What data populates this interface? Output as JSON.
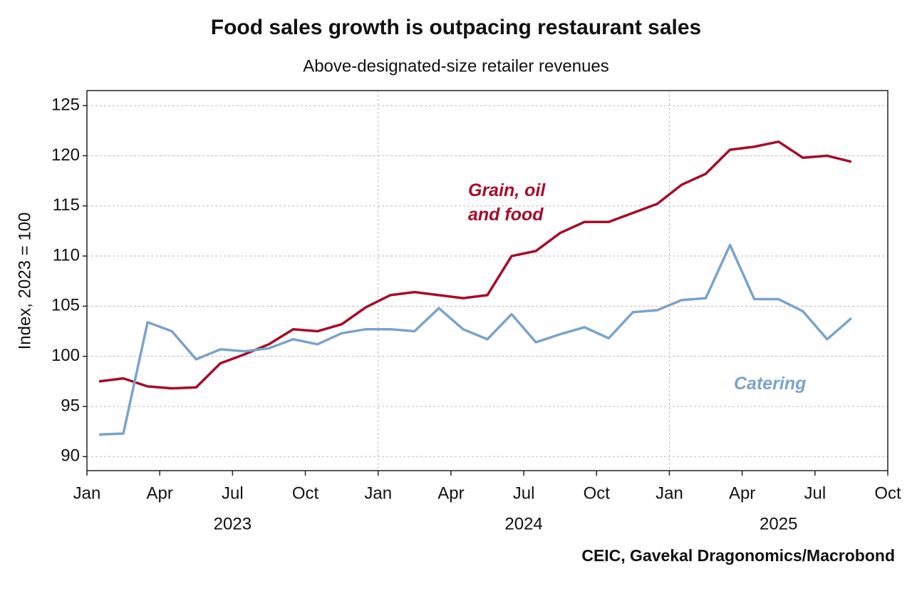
{
  "chart_data": {
    "type": "line",
    "title": "Food sales growth is outpacing restaurant sales",
    "subtitle": "Above-designated-size retailer revenues",
    "y_label": "Index, 2023 = 100",
    "source": "CEIC, Gavekal Dragonomics/Macrobond",
    "x": [
      "2023-01",
      "2023-02",
      "2023-03",
      "2023-04",
      "2023-05",
      "2023-06",
      "2023-07",
      "2023-08",
      "2023-09",
      "2023-10",
      "2023-11",
      "2023-12",
      "2024-01",
      "2024-02",
      "2024-03",
      "2024-04",
      "2024-05",
      "2024-06",
      "2024-07",
      "2024-08",
      "2024-09",
      "2024-10",
      "2024-11",
      "2024-12",
      "2025-01",
      "2025-02",
      "2025-03",
      "2025-04",
      "2025-05",
      "2025-06",
      "2025-07",
      "2025-08"
    ],
    "series": [
      {
        "name": "Grain, oil and food",
        "color": "#a50d2a",
        "values": [
          97.5,
          97.8,
          97.0,
          96.8,
          96.9,
          99.3,
          100.2,
          101.2,
          102.7,
          102.5,
          103.2,
          104.9,
          106.1,
          106.4,
          106.1,
          105.8,
          106.1,
          110.0,
          110.5,
          112.3,
          113.4,
          113.4,
          114.3,
          115.2,
          117.1,
          118.2,
          120.6,
          120.9,
          121.4,
          119.8,
          120.0,
          119.4
        ]
      },
      {
        "name": "Catering",
        "color": "#7aa3cc",
        "values": [
          92.2,
          92.3,
          103.4,
          102.5,
          99.7,
          100.7,
          100.5,
          100.8,
          101.7,
          101.2,
          102.3,
          102.7,
          102.7,
          102.5,
          104.8,
          102.7,
          101.7,
          104.2,
          101.4,
          102.2,
          102.9,
          101.8,
          104.4,
          104.6,
          105.6,
          105.8,
          111.1,
          105.7,
          105.7,
          104.5,
          101.7,
          103.8
        ]
      }
    ],
    "xlim": [
      "2023-01",
      "2025-10"
    ],
    "xticks": [
      {
        "value": "2023-01",
        "label": "Jan"
      },
      {
        "value": "2023-04",
        "label": "Apr"
      },
      {
        "value": "2023-07",
        "label": "Jul"
      },
      {
        "value": "2023-10",
        "label": "Oct"
      },
      {
        "value": "2024-01",
        "label": "Jan"
      },
      {
        "value": "2024-04",
        "label": "Apr"
      },
      {
        "value": "2024-07",
        "label": "Jul"
      },
      {
        "value": "2024-10",
        "label": "Oct"
      },
      {
        "value": "2025-01",
        "label": "Jan"
      },
      {
        "value": "2025-04",
        "label": "Apr"
      },
      {
        "value": "2025-07",
        "label": "Jul"
      },
      {
        "value": "2025-10",
        "label": "Oct"
      }
    ],
    "years": [
      "2023",
      "2024",
      "2025"
    ],
    "ylim": [
      88.6,
      126.5
    ],
    "yticks": [
      90,
      95,
      100,
      105,
      110,
      115,
      120,
      125
    ],
    "grid": true
  }
}
